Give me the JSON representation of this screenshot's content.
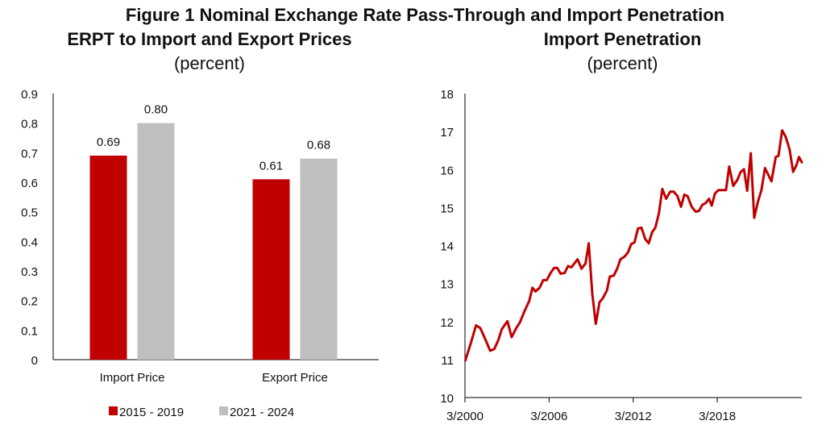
{
  "figure_title": "Figure 1 Nominal Exchange Rate Pass-Through and Import Penetration",
  "colors": {
    "red": "#c00000",
    "gray": "#bfbfbf",
    "axis": "#000000"
  },
  "chart_data": [
    {
      "type": "bar",
      "title": "ERPT to Import and Export Prices",
      "subtitle": "(percent)",
      "xlabel": "",
      "ylabel": "",
      "categories": [
        "Import Price",
        "Export Price"
      ],
      "series": [
        {
          "name": "2015 - 2019",
          "color": "#c00000",
          "values": [
            0.69,
            0.61
          ],
          "labels": [
            "0.69",
            "0.61"
          ]
        },
        {
          "name": "2021 - 2024",
          "color": "#bfbfbf",
          "values": [
            0.8,
            0.68
          ],
          "labels": [
            "0.80",
            "0.68"
          ]
        }
      ],
      "ylim": [
        0,
        0.9
      ],
      "yticks": [
        "0",
        "0.1",
        "0.2",
        "0.3",
        "0.4",
        "0.5",
        "0.6",
        "0.7",
        "0.8",
        "0.9"
      ],
      "grid": false,
      "legend": "bottom"
    },
    {
      "type": "line",
      "title": "Import Penetration",
      "subtitle": "(percent)",
      "xlabel": "",
      "ylabel": "",
      "xlim": [
        2000.17,
        2024.2
      ],
      "ylim": [
        10,
        18
      ],
      "yticks": [
        "10",
        "11",
        "12",
        "13",
        "14",
        "15",
        "16",
        "17",
        "18"
      ],
      "xticks": [
        {
          "label": "3/2000",
          "x": 2000.17
        },
        {
          "label": "3/2006",
          "x": 2006.17
        },
        {
          "label": "3/2012",
          "x": 2012.17
        },
        {
          "label": "3/2018",
          "x": 2018.17
        }
      ],
      "grid": false,
      "legend": "none",
      "series": [
        {
          "name": "Import Penetration",
          "color": "#c00000",
          "x": [
            2000.2,
            2000.6,
            2000.96,
            2001.26,
            2001.6,
            2001.97,
            2002.26,
            2002.55,
            2002.8,
            2003.2,
            2003.5,
            2003.83,
            2004.08,
            2004.4,
            2004.75,
            2004.98,
            2005.2,
            2005.5,
            2005.75,
            2006.0,
            2006.28,
            2006.53,
            2006.76,
            2006.99,
            2007.28,
            2007.52,
            2007.77,
            2008.2,
            2008.48,
            2008.77,
            2009.0,
            2009.25,
            2009.5,
            2009.77,
            2010.0,
            2010.3,
            2010.5,
            2010.78,
            2011.03,
            2011.26,
            2011.55,
            2011.8,
            2012.03,
            2012.26,
            2012.51,
            2012.76,
            2013.03,
            2013.28,
            2013.52,
            2013.75,
            2014.0,
            2014.25,
            2014.52,
            2014.81,
            2015.06,
            2015.33,
            2015.58,
            2015.82,
            2016.05,
            2016.34,
            2016.63,
            2016.86,
            2017.1,
            2017.35,
            2017.58,
            2017.77,
            2018.0,
            2018.25,
            2018.54,
            2018.79,
            2019.02,
            2019.31,
            2019.6,
            2019.84,
            2020.07,
            2020.3,
            2020.56,
            2020.8,
            2021.07,
            2021.32,
            2021.57,
            2022.03,
            2022.34,
            2022.53,
            2022.8,
            2023.05,
            2023.33,
            2023.58,
            2023.81,
            2024.0,
            2024.2
          ],
          "y": [
            10.98,
            11.45,
            11.9,
            11.83,
            11.55,
            11.23,
            11.28,
            11.51,
            11.8,
            12.01,
            11.59,
            11.83,
            11.97,
            12.26,
            12.54,
            12.89,
            12.79,
            12.89,
            13.09,
            13.09,
            13.28,
            13.41,
            13.41,
            13.26,
            13.28,
            13.46,
            13.43,
            13.64,
            13.39,
            13.53,
            14.06,
            12.75,
            11.94,
            12.51,
            12.61,
            12.82,
            13.18,
            13.21,
            13.39,
            13.64,
            13.71,
            13.82,
            14.04,
            14.08,
            14.45,
            14.47,
            14.17,
            14.06,
            14.35,
            14.47,
            14.84,
            15.49,
            15.23,
            15.42,
            15.42,
            15.3,
            15.02,
            15.34,
            15.3,
            15.02,
            14.89,
            14.91,
            15.07,
            15.12,
            15.23,
            15.05,
            15.37,
            15.46,
            15.46,
            15.46,
            16.08,
            15.57,
            15.73,
            15.94,
            16.01,
            15.44,
            16.43,
            14.73,
            15.16,
            15.46,
            16.04,
            15.69,
            16.33,
            16.36,
            17.03,
            16.86,
            16.52,
            15.94,
            16.11,
            16.33,
            16.19
          ]
        }
      ]
    }
  ]
}
